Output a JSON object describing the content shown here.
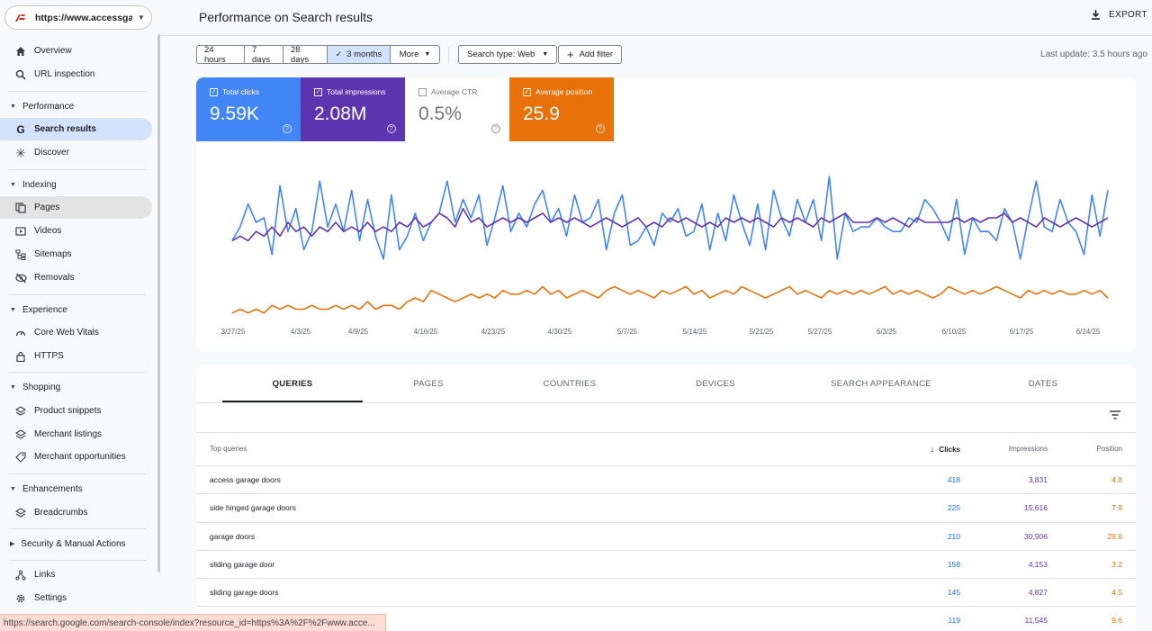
{
  "property": {
    "url": "https://www.accessgar..."
  },
  "sidebar": {
    "items": [
      {
        "label": "Overview",
        "icon": "home-icon"
      },
      {
        "label": "URL inspection",
        "icon": "search-icon"
      },
      {
        "label": "Search results",
        "icon": "google-g-icon"
      },
      {
        "label": "Discover",
        "icon": "asterisk-icon"
      },
      {
        "label": "Pages",
        "icon": "pages-icon"
      },
      {
        "label": "Videos",
        "icon": "video-icon"
      },
      {
        "label": "Sitemaps",
        "icon": "sitemap-icon"
      },
      {
        "label": "Removals",
        "icon": "eye-off-icon"
      },
      {
        "label": "Core Web Vitals",
        "icon": "speedometer-icon"
      },
      {
        "label": "HTTPS",
        "icon": "lock-icon"
      },
      {
        "label": "Product snippets",
        "icon": "layers-icon"
      },
      {
        "label": "Merchant listings",
        "icon": "layers-icon"
      },
      {
        "label": "Merchant opportunities",
        "icon": "tag-icon"
      },
      {
        "label": "Breadcrumbs",
        "icon": "layers-icon"
      },
      {
        "label": "Links",
        "icon": "links-icon"
      },
      {
        "label": "Settings",
        "icon": "gear-icon"
      }
    ],
    "sections": {
      "performance": "Performance",
      "indexing": "Indexing",
      "experience": "Experience",
      "shopping": "Shopping",
      "enhancements": "Enhancements",
      "security": "Security & Manual Actions"
    }
  },
  "header": {
    "title": "Performance on Search results",
    "export": "EXPORT"
  },
  "filters": {
    "dates": [
      "24 hours",
      "7 days",
      "28 days",
      "3 months",
      "More"
    ],
    "selected_date": "3 months",
    "search_type": "Search type: Web",
    "add_filter": "Add filter",
    "last_update": "Last update: 3.5 hours ago"
  },
  "metrics": {
    "clicks": {
      "label": "Total clicks",
      "value": "9.59K",
      "checked": true
    },
    "impressions": {
      "label": "Total impressions",
      "value": "2.08M",
      "checked": true
    },
    "ctr": {
      "label": "Average CTR",
      "value": "0.5%",
      "checked": false
    },
    "position": {
      "label": "Average position",
      "value": "25.9",
      "checked": true
    }
  },
  "chart_data": {
    "type": "line",
    "x_ticks": [
      "3/27/25",
      "4/3/25",
      "4/9/25",
      "4/16/25",
      "4/23/25",
      "4/30/25",
      "5/7/25",
      "5/14/25",
      "5/21/25",
      "5/27/25",
      "6/3/25",
      "6/10/25",
      "6/17/25",
      "6/24/25"
    ],
    "grid": false,
    "series": [
      {
        "name": "Total clicks",
        "color": "#4285f4",
        "values": [
          100,
          115,
          140,
          120,
          125,
          85,
          160,
          110,
          135,
          90,
          110,
          165,
          115,
          140,
          110,
          155,
          100,
          145,
          105,
          80,
          150,
          90,
          105,
          130,
          100,
          120,
          130,
          165,
          120,
          145,
          125,
          150,
          95,
          125,
          160,
          110,
          130,
          115,
          140,
          155,
          120,
          135,
          105,
          150,
          120,
          125,
          145,
          90,
          130,
          150,
          95,
          100,
          115,
          95,
          130,
          120,
          135,
          105,
          110,
          140,
          90,
          130,
          100,
          150,
          120,
          95,
          140,
          90,
          155,
          125,
          105,
          145,
          120,
          145,
          100,
          170,
          80,
          130,
          110,
          115,
          115,
          125,
          115,
          110,
          110,
          125,
          120,
          145,
          135,
          120,
          100,
          145,
          85,
          125,
          110,
          110,
          100,
          135,
          120,
          80,
          125,
          165,
          115,
          110,
          145,
          120,
          110,
          85,
          150,
          105,
          155
        ]
      },
      {
        "name": "Total impressions",
        "color": "#5e35b1",
        "values": [
          100,
          105,
          100,
          110,
          105,
          115,
          105,
          120,
          110,
          115,
          105,
          115,
          110,
          120,
          110,
          115,
          110,
          120,
          110,
          115,
          110,
          120,
          115,
          125,
          115,
          120,
          130,
          125,
          115,
          135,
          120,
          125,
          115,
          120,
          125,
          120,
          125,
          120,
          125,
          130,
          120,
          125,
          120,
          125,
          120,
          115,
          120,
          125,
          120,
          115,
          120,
          125,
          115,
          120,
          115,
          125,
          120,
          125,
          120,
          115,
          120,
          115,
          125,
          120,
          125,
          120,
          125,
          120,
          115,
          125,
          120,
          125,
          120,
          115,
          125,
          120,
          125,
          130,
          120,
          120,
          120,
          125,
          120,
          125,
          120,
          115,
          125,
          120,
          120,
          120,
          120,
          125,
          120,
          125,
          120,
          125,
          125,
          130,
          120,
          125,
          120,
          115,
          125,
          120,
          115,
          120,
          125,
          120,
          115,
          120,
          125
        ]
      },
      {
        "name": "Average position",
        "color": "#e8710a",
        "values": [
          22,
          23,
          22,
          23,
          22,
          24,
          23,
          24,
          23,
          23,
          24,
          23,
          23,
          24,
          23,
          24,
          23,
          25,
          23,
          24,
          24,
          23,
          25,
          26,
          25,
          28,
          27,
          26,
          25,
          26,
          27,
          26,
          27,
          26,
          28,
          27,
          27,
          28,
          27,
          29,
          27,
          28,
          26,
          27,
          28,
          27,
          26,
          28,
          29,
          28,
          27,
          28,
          27,
          26,
          28,
          27,
          28,
          29,
          27,
          28,
          26,
          27,
          28,
          27,
          29,
          28,
          27,
          26,
          27,
          28,
          29,
          27,
          28,
          27,
          26,
          28,
          27,
          28,
          27,
          28,
          27,
          28,
          29,
          27,
          28,
          27,
          28,
          27,
          26,
          27,
          29,
          28,
          27,
          28,
          27,
          28,
          29,
          28,
          27,
          26,
          28,
          27,
          28,
          27,
          28,
          27,
          27,
          28,
          27,
          28,
          26
        ]
      }
    ]
  },
  "tabs": [
    "QUERIES",
    "PAGES",
    "COUNTRIES",
    "DEVICES",
    "SEARCH APPEARANCE",
    "DATES"
  ],
  "table": {
    "headers": {
      "query": "Top queries",
      "clicks": "Clicks",
      "impressions": "Impressions",
      "position": "Position"
    },
    "rows": [
      {
        "query": "access garage doors",
        "clicks": "418",
        "impressions": "3,831",
        "position": "4.8"
      },
      {
        "query": "side hinged garage doors",
        "clicks": "225",
        "impressions": "15,616",
        "position": "7.9"
      },
      {
        "query": "garage doors",
        "clicks": "210",
        "impressions": "30,906",
        "position": "29.8"
      },
      {
        "query": "sliding garage door",
        "clicks": "158",
        "impressions": "4,153",
        "position": "3.2"
      },
      {
        "query": "sliding garage doors",
        "clicks": "145",
        "impressions": "4,827",
        "position": "4.5"
      },
      {
        "query": "",
        "clicks": "119",
        "impressions": "11,545",
        "position": "9.6"
      }
    ]
  },
  "statusbar": {
    "text": "https://search.google.com/search-console/index?resource_id=https%3A%2F%2Fwww.acce..."
  }
}
